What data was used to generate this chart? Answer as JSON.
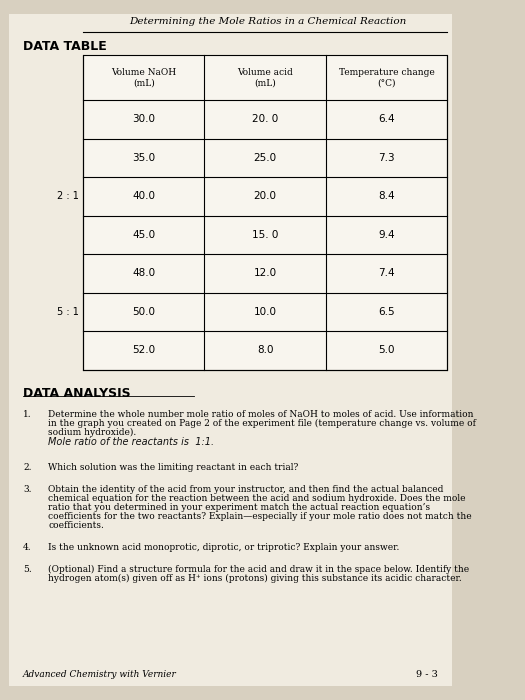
{
  "title": "Determining the Mole Ratios in a Chemical Reaction",
  "section1_header": "DATA TABLE",
  "table_headers": [
    "Volume NaOH\n(mL)",
    "Volume acid\n(mL)",
    "Temperature change\n(°C)"
  ],
  "table_rows": [
    [
      "30.0",
      "20. 0",
      "6.4"
    ],
    [
      "35.0",
      "25.0",
      "7.3"
    ],
    [
      "40.0",
      "20.0",
      "8.4"
    ],
    [
      "45.0",
      "15. 0",
      "9.4"
    ],
    [
      "48.0",
      "12.0",
      "7.4"
    ],
    [
      "50.0",
      "10.0",
      "6.5"
    ],
    [
      "52.0",
      "8.0",
      "5.0"
    ]
  ],
  "side_annotations": [
    {
      "text": "2 : 1",
      "row": 2
    },
    {
      "text": "5 : 1",
      "row": 5
    }
  ],
  "section2_header": "DATA ANALYSIS",
  "questions": [
    {
      "number": "1.",
      "text": "Determine the whole number mole ratio of moles of NaOH to moles of acid. Use information\nin the graph you created on Page 2 of the experiment file (temperature change vs. volume of\nsodium hydroxide).",
      "handwritten": "Mole ratio of the reactants is  1:1."
    },
    {
      "number": "2.",
      "text": "Which solution was the limiting reactant in each trial?",
      "handwritten": ""
    },
    {
      "number": "3.",
      "text": "Obtain the identity of the acid from your instructor, and then find the actual balanced\nchemical equation for the reaction between the acid and sodium hydroxide. Does the mole\nratio that you determined in your experiment match the actual reaction equation’s\ncoefficients for the two reactants? Explain—especially if your mole ratio does not match the\ncoefficients.",
      "handwritten": ""
    },
    {
      "number": "4.",
      "text": "Is the unknown acid monoprotic, diprotic, or triprotic? Explain your answer.",
      "handwritten": ""
    },
    {
      "number": "5.",
      "text": "(Optional) Find a structure formula for the acid and draw it in the space below. Identify the\nhydrogen atom(s) given off as H⁺ ions (protons) giving this substance its acidic character.",
      "handwritten": ""
    }
  ],
  "footer_left": "Advanced Chemistry with Vernier",
  "footer_right": "9 - 3",
  "bg_color": "#d8d0c0",
  "paper_color": "#f0ebe0"
}
